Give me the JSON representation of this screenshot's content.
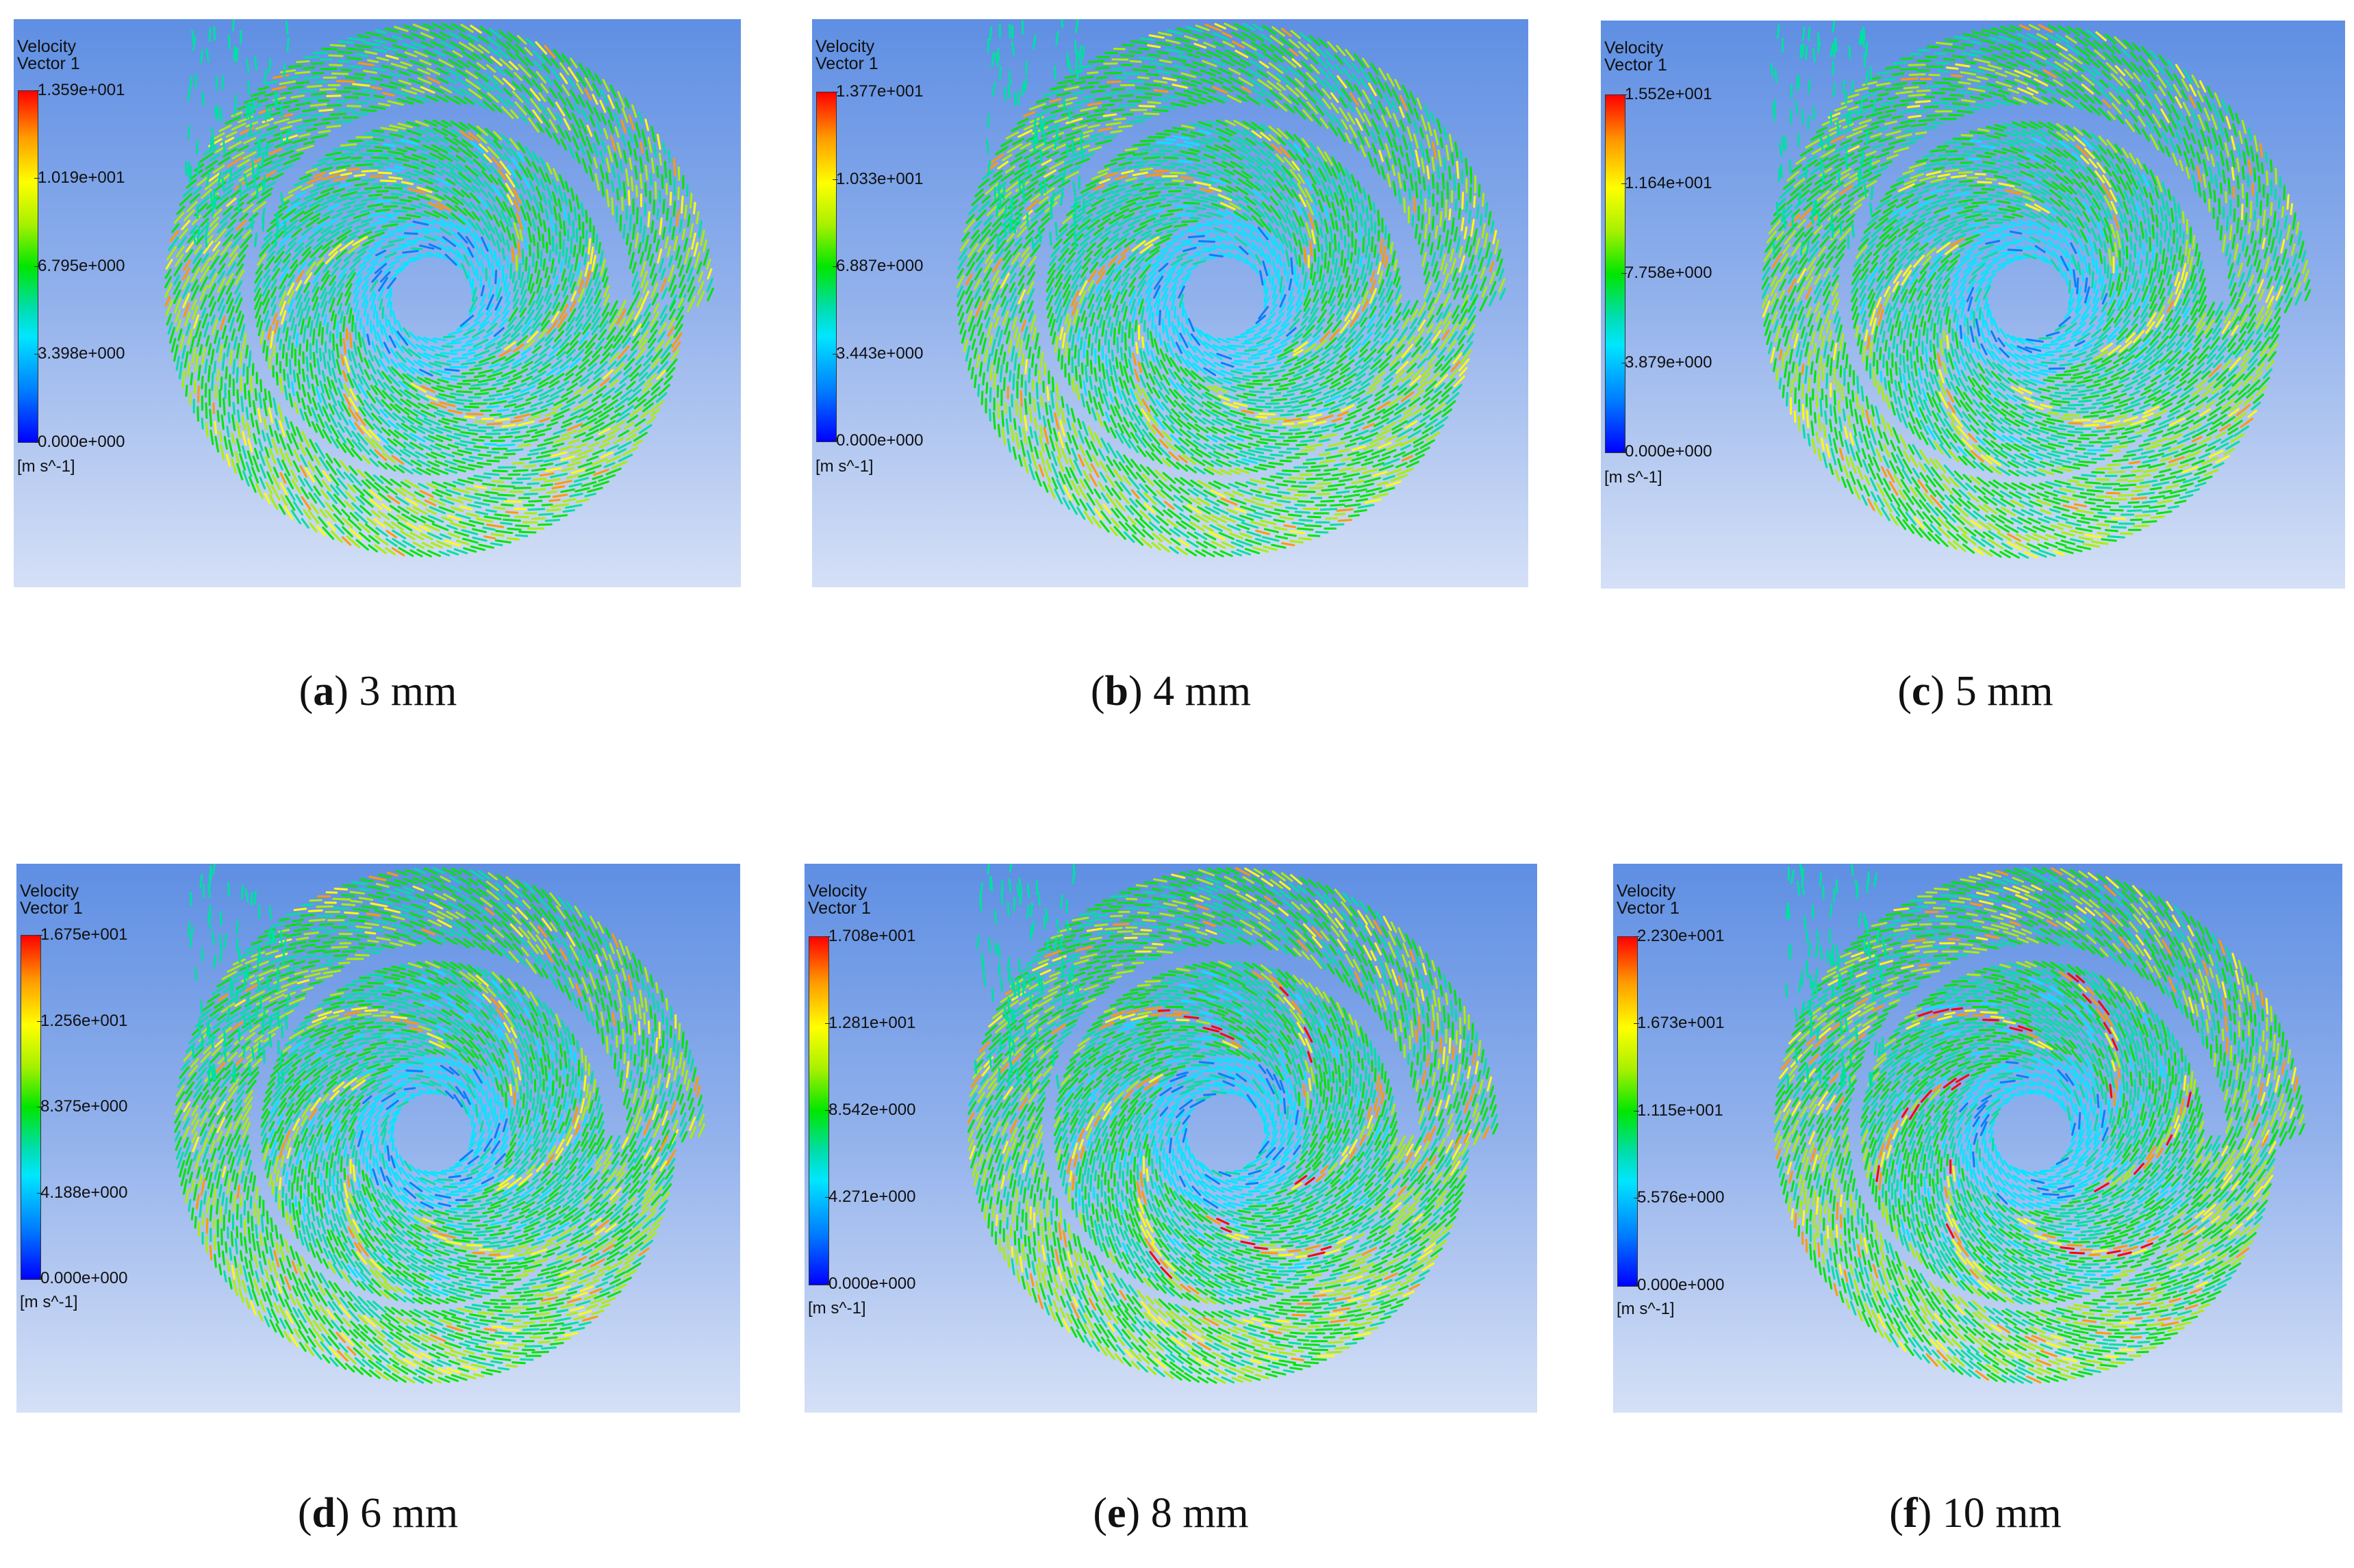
{
  "legend_common": {
    "title_line1": "Velocity",
    "title_line2": "Vector 1",
    "unit": "[m s^-1]"
  },
  "colors": {
    "background_top": "#5f8fe3",
    "background_bottom": "#d5e0f6",
    "low": "#0000ff",
    "mid": "#00e600",
    "high": "#ff0000"
  },
  "panels": [
    {
      "letter": "a",
      "caption_value": "3 mm",
      "ticks": [
        "1.359e+001",
        "1.019e+001",
        "6.795e+000",
        "3.398e+000",
        "0.000e+000"
      ],
      "intensity": 0.6
    },
    {
      "letter": "b",
      "caption_value": "4 mm",
      "ticks": [
        "1.377e+001",
        "1.033e+001",
        "6.887e+000",
        "3.443e+000",
        "0.000e+000"
      ],
      "intensity": 0.58
    },
    {
      "letter": "c",
      "caption_value": "5 mm",
      "ticks": [
        "1.552e+001",
        "1.164e+001",
        "7.758e+000",
        "3.879e+000",
        "0.000e+000"
      ],
      "intensity": 0.5
    },
    {
      "letter": "d",
      "caption_value": "6 mm",
      "ticks": [
        "1.675e+001",
        "1.256e+001",
        "8.375e+000",
        "4.188e+000",
        "0.000e+000"
      ],
      "intensity": 0.48
    },
    {
      "letter": "e",
      "caption_value": "8 mm",
      "ticks": [
        "1.708e+001",
        "1.281e+001",
        "8.542e+000",
        "4.271e+000",
        "0.000e+000"
      ],
      "intensity": 0.7
    },
    {
      "letter": "f",
      "caption_value": "10 mm",
      "ticks": [
        "2.230e+001",
        "1.673e+001",
        "1.115e+001",
        "5.576e+000",
        "0.000e+000"
      ],
      "intensity": 0.8
    }
  ]
}
